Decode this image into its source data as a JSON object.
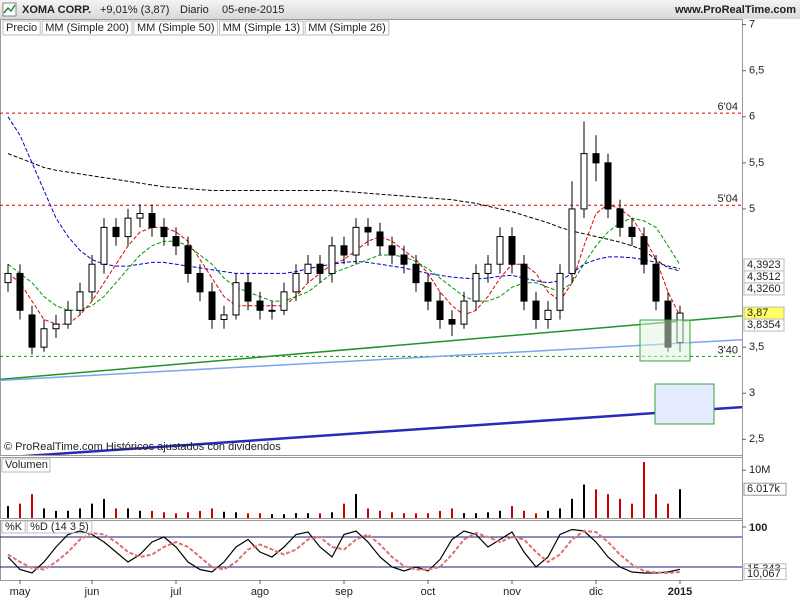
{
  "chart_data": [
    {
      "type": "candlestick",
      "title": "XOMA CORP.",
      "change": "+9,01% (3,87)",
      "period": "Diario",
      "date": "05-ene-2015",
      "source": "www.ProRealTime.com",
      "note": "© ProRealTime.com Históricos ajustados con dividendos",
      "price_label": "Precio",
      "categories": [
        null,
        "may",
        null,
        null,
        null,
        null,
        null,
        "jun",
        null,
        null,
        null,
        null,
        null,
        null,
        "jul",
        null,
        null,
        null,
        null,
        null,
        null,
        "ago",
        null,
        null,
        null,
        null,
        null,
        null,
        "sep",
        null,
        null,
        null,
        null,
        null,
        null,
        "oct",
        null,
        null,
        null,
        null,
        null,
        null,
        "nov",
        null,
        null,
        null,
        null,
        null,
        null,
        "dic",
        null,
        null,
        null,
        null,
        null,
        null,
        "2015"
      ],
      "open": [
        4.2,
        4.3,
        3.85,
        3.5,
        3.7,
        3.75,
        3.9,
        4.1,
        4.4,
        4.8,
        4.7,
        4.9,
        4.95,
        4.8,
        4.7,
        4.6,
        4.3,
        4.1,
        3.8,
        3.85,
        4.2,
        4.0,
        3.9,
        3.9,
        4.1,
        4.3,
        4.4,
        4.3,
        4.6,
        4.5,
        4.8,
        4.75,
        4.6,
        4.5,
        4.4,
        4.2,
        4.0,
        3.8,
        3.75,
        4.0,
        4.3,
        4.4,
        4.7,
        4.4,
        4.0,
        3.8,
        3.9,
        4.3,
        5.0,
        5.6,
        5.5,
        5.0,
        4.8,
        4.7,
        4.4,
        4.0,
        3.55
      ],
      "high": [
        4.4,
        4.4,
        3.95,
        3.8,
        3.85,
        4.0,
        4.2,
        4.5,
        4.9,
        4.9,
        5.0,
        5.05,
        5.05,
        4.9,
        4.8,
        4.7,
        4.4,
        4.2,
        3.95,
        4.3,
        4.3,
        4.1,
        4.0,
        4.2,
        4.4,
        4.5,
        4.5,
        4.7,
        4.7,
        4.9,
        4.9,
        4.85,
        4.7,
        4.6,
        4.5,
        4.3,
        4.1,
        3.9,
        4.1,
        4.4,
        4.5,
        4.8,
        4.8,
        4.5,
        4.1,
        4.0,
        4.4,
        5.3,
        5.95,
        5.8,
        5.6,
        5.1,
        4.9,
        4.8,
        4.5,
        4.1,
        3.95
      ],
      "low": [
        4.1,
        3.8,
        3.42,
        3.45,
        3.6,
        3.7,
        3.85,
        4.0,
        4.3,
        4.6,
        4.6,
        4.8,
        4.7,
        4.6,
        4.5,
        4.2,
        4.0,
        3.7,
        3.7,
        3.8,
        3.9,
        3.8,
        3.8,
        3.85,
        4.0,
        4.2,
        4.2,
        4.2,
        4.4,
        4.4,
        4.6,
        4.5,
        4.4,
        4.3,
        4.1,
        3.9,
        3.7,
        3.62,
        3.7,
        3.9,
        4.2,
        4.3,
        4.3,
        3.9,
        3.7,
        3.7,
        3.8,
        4.2,
        4.9,
        5.3,
        4.9,
        4.7,
        4.6,
        4.3,
        3.9,
        3.45,
        3.45
      ],
      "close": [
        4.3,
        3.9,
        3.5,
        3.7,
        3.75,
        3.9,
        4.1,
        4.4,
        4.8,
        4.7,
        4.9,
        4.95,
        4.8,
        4.7,
        4.6,
        4.3,
        4.1,
        3.8,
        3.85,
        4.2,
        4.0,
        3.9,
        3.9,
        4.1,
        4.3,
        4.4,
        4.3,
        4.6,
        4.5,
        4.8,
        4.75,
        4.6,
        4.5,
        4.4,
        4.2,
        4.0,
        3.8,
        3.75,
        4.0,
        4.3,
        4.4,
        4.7,
        4.4,
        4.0,
        3.8,
        3.9,
        4.3,
        5.0,
        5.6,
        5.5,
        5.0,
        4.8,
        4.7,
        4.4,
        4.0,
        3.5,
        3.87
      ],
      "close_label": "3,87",
      "up_color": "#ffffff",
      "down_color": "#000000",
      "label_color": "#ffff66",
      "series": [
        {
          "name": "MM (Simple 200)",
          "color": "#000000",
          "last_label": "4,3260",
          "values": [
            5.6,
            5.55,
            5.5,
            5.45,
            5.42,
            5.4,
            5.38,
            5.36,
            5.34,
            5.32,
            5.3,
            5.28,
            5.26,
            5.24,
            5.23,
            5.22,
            5.21,
            5.2,
            5.2,
            5.2,
            5.2,
            5.2,
            5.2,
            5.2,
            5.2,
            5.2,
            5.2,
            5.2,
            5.19,
            5.18,
            5.17,
            5.16,
            5.15,
            5.14,
            5.13,
            5.12,
            5.11,
            5.1,
            5.08,
            5.06,
            5.03,
            5.0,
            4.97,
            4.93,
            4.89,
            4.85,
            4.8,
            4.76,
            4.73,
            4.7,
            4.67,
            4.64,
            4.6,
            4.55,
            4.45,
            4.36,
            4.326
          ]
        },
        {
          "name": "MM (Simple 50)",
          "color": "#0000cc",
          "last_label": "4,3512",
          "values": [
            6.0,
            5.8,
            5.5,
            5.2,
            4.9,
            4.7,
            4.55,
            4.45,
            4.4,
            4.38,
            4.38,
            4.4,
            4.42,
            4.42,
            4.4,
            4.38,
            4.36,
            4.34,
            4.32,
            4.3,
            4.3,
            4.3,
            4.3,
            4.3,
            4.32,
            4.35,
            4.38,
            4.4,
            4.42,
            4.43,
            4.42,
            4.4,
            4.38,
            4.36,
            4.33,
            4.3,
            4.28,
            4.26,
            4.25,
            4.24,
            4.25,
            4.27,
            4.28,
            4.25,
            4.22,
            4.2,
            4.22,
            4.3,
            4.4,
            4.45,
            4.48,
            4.48,
            4.47,
            4.45,
            4.42,
            4.38,
            4.3512
          ]
        },
        {
          "name": "MM (Simple 13)",
          "color": "#dd0000",
          "last_label": "3,8354",
          "values": [
            4.3,
            4.2,
            4.0,
            3.8,
            3.75,
            3.75,
            3.85,
            4.0,
            4.2,
            4.4,
            4.6,
            4.75,
            4.8,
            4.8,
            4.75,
            4.65,
            4.45,
            4.25,
            4.05,
            3.95,
            3.95,
            3.95,
            3.95,
            3.95,
            4.05,
            4.2,
            4.3,
            4.4,
            4.45,
            4.55,
            4.65,
            4.7,
            4.65,
            4.55,
            4.45,
            4.3,
            4.1,
            3.95,
            3.85,
            3.9,
            4.05,
            4.25,
            4.4,
            4.4,
            4.3,
            4.1,
            4.0,
            4.2,
            4.6,
            4.95,
            5.05,
            5.0,
            4.9,
            4.7,
            4.45,
            4.1,
            3.8354
          ]
        },
        {
          "name": "MM (Simple 26)",
          "color": "#009900",
          "last_label": "4,3923",
          "values": [
            4.4,
            4.3,
            4.2,
            4.05,
            3.95,
            3.9,
            3.9,
            3.95,
            4.05,
            4.2,
            4.35,
            4.5,
            4.6,
            4.65,
            4.65,
            4.6,
            4.5,
            4.4,
            4.25,
            4.15,
            4.1,
            4.05,
            4.0,
            4.0,
            4.05,
            4.1,
            4.2,
            4.3,
            4.35,
            4.4,
            4.45,
            4.5,
            4.5,
            4.48,
            4.43,
            4.35,
            4.25,
            4.15,
            4.05,
            4.0,
            4.0,
            4.05,
            4.15,
            4.2,
            4.2,
            4.15,
            4.1,
            4.2,
            4.4,
            4.6,
            4.75,
            4.85,
            4.9,
            4.87,
            4.8,
            4.6,
            4.3923
          ]
        }
      ],
      "levels": [
        {
          "value": 6.04,
          "label": "6'04",
          "color": "#dd0000"
        },
        {
          "value": 5.04,
          "label": "5'04",
          "color": "#dd0000"
        },
        {
          "value": 3.4,
          "label": "3'40",
          "color": "#009900"
        }
      ],
      "trendlines": [
        {
          "color": "#22922a",
          "values": [
            3.15,
            3.84
          ]
        },
        {
          "color": "#7aa6ee",
          "values": [
            3.14,
            3.58
          ]
        },
        {
          "color": "#2a2ab8",
          "values": [
            2.3,
            2.85
          ]
        }
      ],
      "ylim": [
        2.33,
        7.05
      ],
      "yticks": [
        7,
        {
          "value": 6.5,
          "label": "6,5"
        },
        6,
        {
          "value": 5.5,
          "label": "5,5"
        },
        5,
        {
          "value": 3.5,
          "label": "3,5"
        },
        3,
        {
          "value": 2.5,
          "label": "2,5"
        }
      ]
    },
    {
      "type": "bar",
      "title": "Volumen",
      "values": [
        2.5,
        3,
        5,
        2,
        1.5,
        1.5,
        2,
        3,
        4,
        2,
        2,
        1.5,
        1.5,
        1.2,
        1,
        1.2,
        1.5,
        2,
        1.3,
        1.2,
        1,
        1,
        0.8,
        0.8,
        1,
        1,
        1,
        1.2,
        3,
        5,
        2,
        1.5,
        1.2,
        1,
        1,
        1,
        1.5,
        2,
        1,
        1,
        1.2,
        1.5,
        2.5,
        1.5,
        1,
        1.5,
        2,
        4,
        7,
        6,
        5,
        4,
        3,
        11.7,
        5,
        3,
        6.017
      ],
      "last_label": "6.017k",
      "up_color": "#000000",
      "down_color": "#cc0000",
      "ylim": [
        0,
        12.55
      ],
      "yticks": [
        {
          "value": 10,
          "label": "10M"
        }
      ]
    },
    {
      "type": "line",
      "series": [
        {
          "name": "%K",
          "color": "#000000",
          "last_label": "15,343",
          "values": [
            40,
            15,
            8,
            30,
            60,
            85,
            92,
            85,
            70,
            50,
            30,
            45,
            70,
            80,
            60,
            30,
            15,
            10,
            30,
            60,
            75,
            50,
            40,
            60,
            85,
            90,
            60,
            40,
            85,
            92,
            70,
            40,
            20,
            12,
            20,
            12,
            35,
            75,
            92,
            85,
            60,
            75,
            90,
            50,
            20,
            40,
            85,
            95,
            92,
            70,
            40,
            20,
            10,
            8,
            8,
            10,
            15.343
          ]
        },
        {
          "name": "%D (14 3 5)",
          "color": "#e07070",
          "last_label": "10,067",
          "values": [
            45,
            30,
            18,
            15,
            30,
            50,
            75,
            88,
            85,
            70,
            50,
            40,
            45,
            60,
            70,
            60,
            40,
            20,
            15,
            30,
            55,
            65,
            55,
            45,
            55,
            75,
            80,
            60,
            55,
            75,
            85,
            65,
            40,
            22,
            15,
            15,
            20,
            45,
            75,
            88,
            80,
            70,
            80,
            75,
            50,
            30,
            45,
            75,
            92,
            90,
            70,
            45,
            25,
            12,
            9,
            8,
            10.067
          ]
        }
      ],
      "reference_lines": [
        80,
        20
      ],
      "ylim": [
        -6,
        112
      ],
      "yticks": [
        100
      ]
    }
  ]
}
